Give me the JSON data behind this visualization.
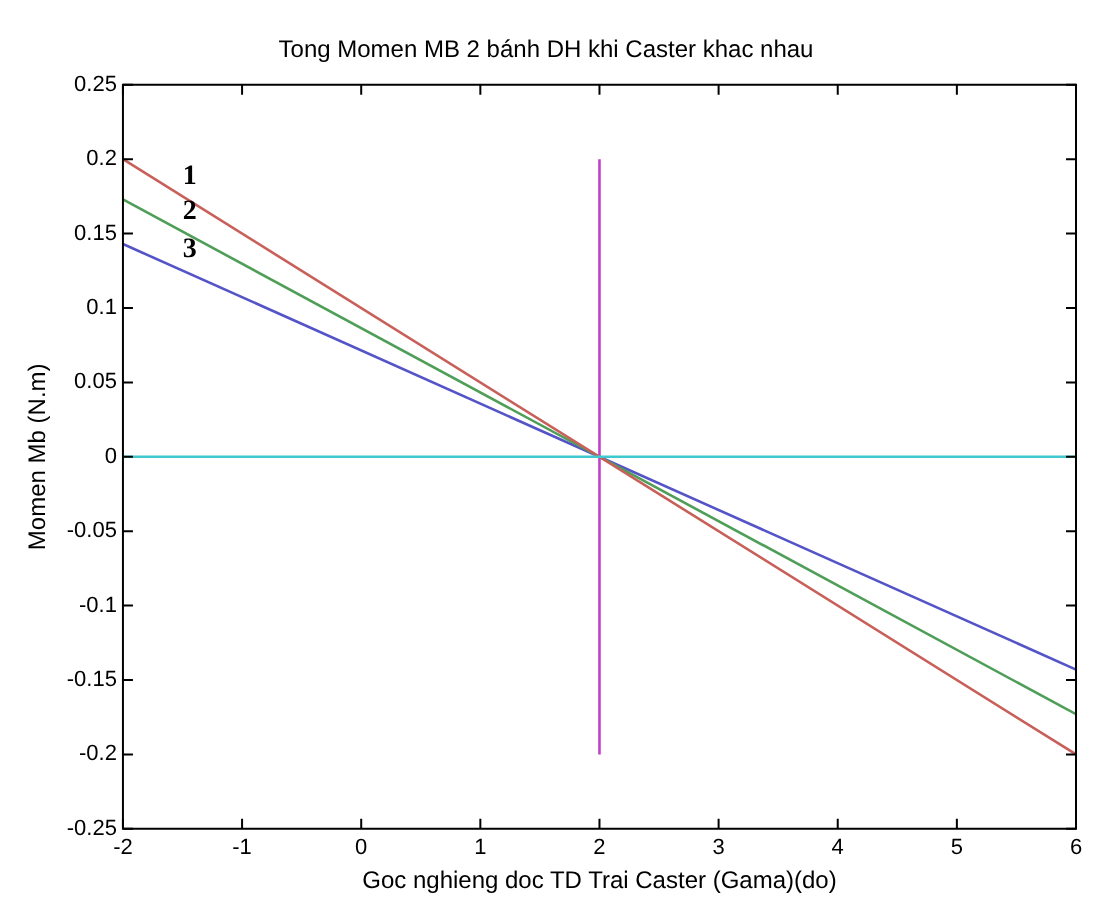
{
  "chart_data": {
    "type": "line",
    "title": "Tong Momen MB 2 bánh DH khi Caster khac nhau",
    "xlabel": "Goc nghieng doc TD Trai Caster (Gama)(do)",
    "ylabel": "Momen Mb (N.m)",
    "x": [
      -2,
      6
    ],
    "series": [
      {
        "name": "1",
        "color": "#c8605a",
        "values": [
          0.2,
          -0.2
        ]
      },
      {
        "name": "2",
        "color": "#4f9e58",
        "values": [
          0.173,
          -0.173
        ]
      },
      {
        "name": "3",
        "color": "#5454c8",
        "values": [
          0.143,
          -0.143
        ]
      },
      {
        "color": "#c040c8",
        "x": [
          2,
          2
        ],
        "values": [
          -0.2,
          0.2
        ]
      }
    ],
    "ref_lines": [
      {
        "axis": "y",
        "value": 0,
        "color": "#40c8d0"
      }
    ],
    "xlim": [
      -2,
      6
    ],
    "xticks": [
      -2,
      -1,
      0,
      1,
      2,
      3,
      4,
      5,
      6
    ],
    "ylim": [
      -0.25,
      0.25
    ],
    "yticks": [
      -0.25,
      -0.2,
      -0.15,
      -0.1,
      -0.05,
      0,
      0.05,
      0.1,
      0.15,
      0.2,
      0.25
    ],
    "grid": false,
    "legend": false
  }
}
